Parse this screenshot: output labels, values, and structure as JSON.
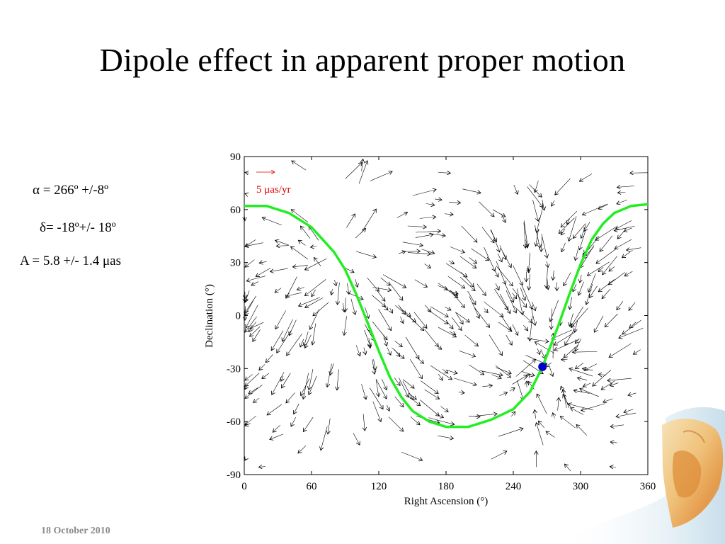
{
  "slide": {
    "title": "Dipole effect in apparent proper motion",
    "footer_date": "18 October 2010",
    "params": {
      "alpha": "α  = 266º +/-8º",
      "delta": "δ= -18º+/- 18º",
      "amplitude": "A = 5.8 +/- 1.4 μas"
    }
  },
  "chart_data": {
    "type": "scatter",
    "title": "",
    "xlabel": "Right Ascension (°)",
    "ylabel": "Declination (°)",
    "xlim": [
      0,
      360
    ],
    "ylim": [
      -90,
      90
    ],
    "xticks": [
      0,
      60,
      120,
      180,
      240,
      300,
      360
    ],
    "yticks": [
      90,
      60,
      30,
      0,
      -30,
      -60,
      -90
    ],
    "scale_label": "5 μas/yr",
    "scale_arrow_length": 5,
    "dipole_apex": {
      "ra": 266,
      "dec": -29,
      "color": "#0000cc"
    },
    "curve": {
      "color": "#22ee22",
      "points": [
        [
          0,
          62
        ],
        [
          20,
          62
        ],
        [
          40,
          58
        ],
        [
          60,
          50
        ],
        [
          80,
          36
        ],
        [
          90,
          26
        ],
        [
          100,
          12
        ],
        [
          110,
          -4
        ],
        [
          120,
          -20
        ],
        [
          130,
          -35
        ],
        [
          140,
          -46
        ],
        [
          150,
          -54
        ],
        [
          165,
          -60
        ],
        [
          180,
          -63
        ],
        [
          200,
          -63
        ],
        [
          220,
          -59
        ],
        [
          240,
          -53
        ],
        [
          255,
          -43
        ],
        [
          266,
          -29
        ],
        [
          280,
          -6
        ],
        [
          290,
          12
        ],
        [
          300,
          29
        ],
        [
          310,
          43
        ],
        [
          320,
          52
        ],
        [
          330,
          58
        ],
        [
          345,
          62
        ],
        [
          360,
          63
        ]
      ]
    },
    "vector_color": "#000000",
    "scale_color": "#dd0000",
    "grid": false,
    "legend_position": "top-left"
  }
}
